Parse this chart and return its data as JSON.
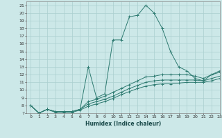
{
  "xlabel": "Humidex (Indice chaleur)",
  "bg_color": "#cce8e8",
  "line_color": "#2d7a70",
  "grid_color": "#aacfcf",
  "xlim": [
    -0.5,
    23
  ],
  "ylim": [
    7,
    21.5
  ],
  "xticks": [
    0,
    1,
    2,
    3,
    4,
    5,
    6,
    7,
    8,
    9,
    10,
    11,
    12,
    13,
    14,
    15,
    16,
    17,
    18,
    19,
    20,
    21,
    22,
    23
  ],
  "yticks": [
    7,
    8,
    9,
    10,
    11,
    12,
    13,
    14,
    15,
    16,
    17,
    18,
    19,
    20,
    21
  ],
  "lines": [
    {
      "x": [
        0,
        1,
        2,
        3,
        4,
        5,
        6,
        7,
        8,
        9,
        10,
        11,
        12,
        13,
        14,
        15,
        16,
        17,
        18,
        19,
        20,
        21,
        22,
        23
      ],
      "y": [
        8,
        7,
        7.5,
        7.2,
        7.2,
        7.2,
        7.5,
        13,
        9,
        9.5,
        16.5,
        16.5,
        19.5,
        19.7,
        21,
        20,
        18,
        15,
        13,
        12.5,
        11.5,
        11.2,
        12,
        12.5
      ]
    },
    {
      "x": [
        0,
        1,
        2,
        3,
        4,
        5,
        6,
        7,
        8,
        9,
        10,
        11,
        12,
        13,
        14,
        15,
        16,
        17,
        18,
        19,
        20,
        21,
        22,
        23
      ],
      "y": [
        8,
        7,
        7.5,
        7.2,
        7.2,
        7.2,
        7.5,
        8.5,
        8.8,
        9.2,
        9.7,
        10.2,
        10.7,
        11.2,
        11.7,
        11.8,
        12,
        12,
        12,
        12,
        11.8,
        11.5,
        12,
        12.3
      ]
    },
    {
      "x": [
        0,
        1,
        2,
        3,
        4,
        5,
        6,
        7,
        8,
        9,
        10,
        11,
        12,
        13,
        14,
        15,
        16,
        17,
        18,
        19,
        20,
        21,
        22,
        23
      ],
      "y": [
        8,
        7,
        7.5,
        7.2,
        7.2,
        7.2,
        7.5,
        8.2,
        8.5,
        8.8,
        9.2,
        9.7,
        10.2,
        10.6,
        11.0,
        11.2,
        11.3,
        11.3,
        11.3,
        11.3,
        11.3,
        11.2,
        11.5,
        11.8
      ]
    },
    {
      "x": [
        0,
        1,
        2,
        3,
        4,
        5,
        6,
        7,
        8,
        9,
        10,
        11,
        12,
        13,
        14,
        15,
        16,
        17,
        18,
        19,
        20,
        21,
        22,
        23
      ],
      "y": [
        8,
        7,
        7.5,
        7.1,
        7.1,
        7.1,
        7.4,
        7.9,
        8.2,
        8.5,
        8.9,
        9.4,
        9.8,
        10.2,
        10.5,
        10.7,
        10.8,
        10.8,
        10.9,
        11.0,
        11.0,
        11.0,
        11.2,
        11.5
      ]
    }
  ]
}
